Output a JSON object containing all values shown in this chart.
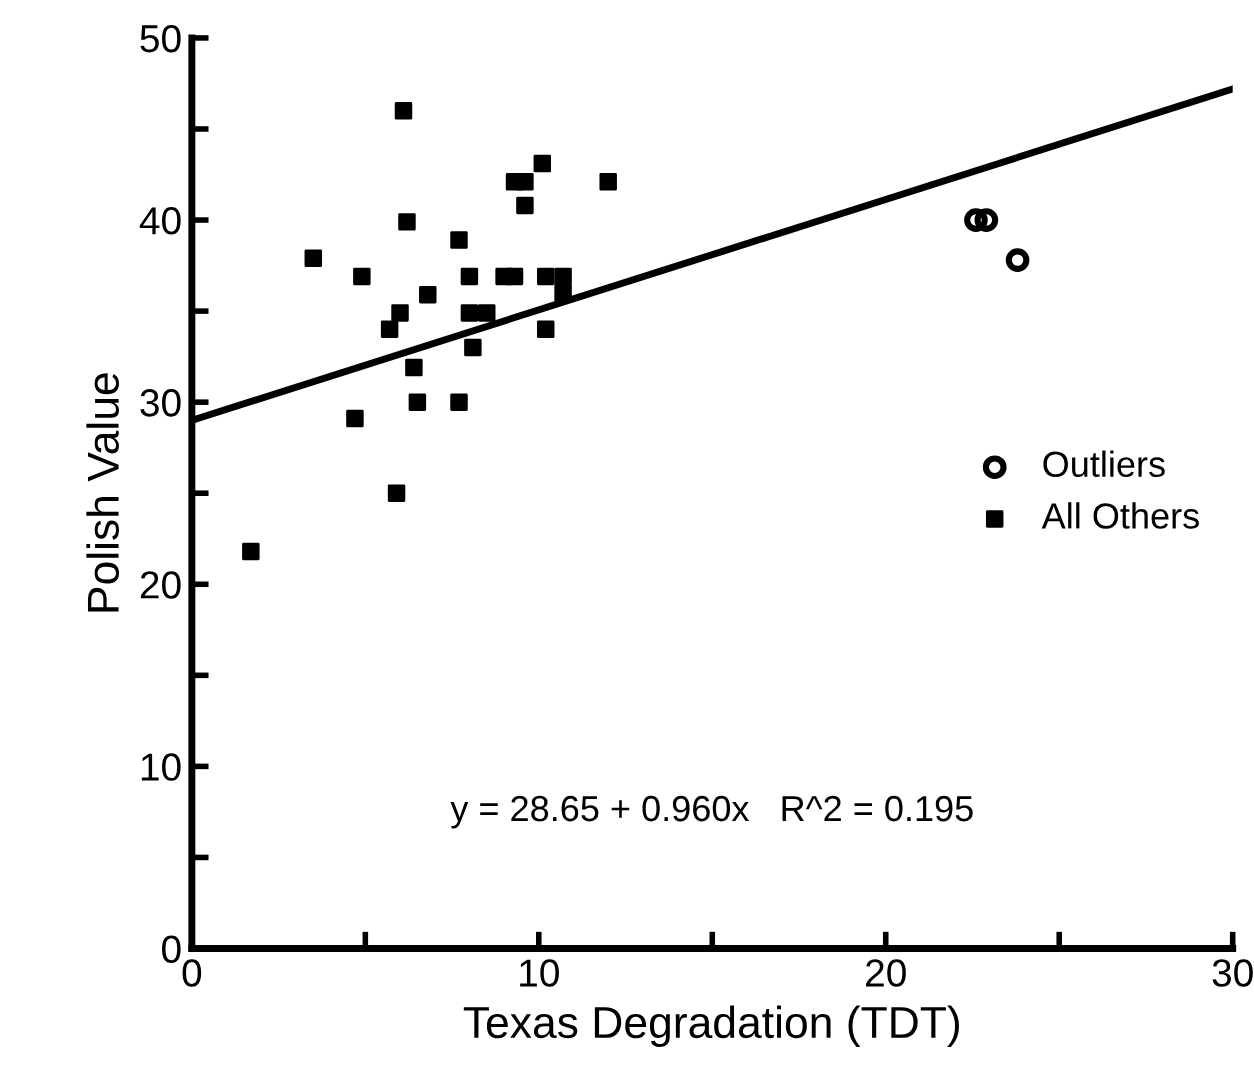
{
  "chart_data": {
    "type": "scatter",
    "xlabel": "Texas Degradation (TDT)",
    "ylabel": "Polish Value",
    "xlim": [
      0,
      30
    ],
    "ylim": [
      0,
      50
    ],
    "xticks": [
      0,
      {
        "value": 5,
        "label": null
      },
      10,
      {
        "value": 15,
        "label": null
      },
      20,
      {
        "value": 25,
        "label": null
      },
      30
    ],
    "yticks": [
      0,
      {
        "value": 5,
        "label": null
      },
      10,
      {
        "value": 15,
        "label": null
      },
      20,
      {
        "value": 25,
        "label": null
      },
      30,
      {
        "value": 35,
        "label": null
      },
      40,
      {
        "value": 45,
        "label": null
      },
      50
    ],
    "grid": false,
    "legend": "right",
    "annotations": [
      "y = 28.65 + 0.960x   R^2 = 0.195"
    ],
    "series": [
      {
        "name": "Outliers",
        "marker": "circle",
        "color": "#000000",
        "x": [
          22.6,
          22.9,
          23.8
        ],
        "values": [
          40.0,
          40.0,
          37.8
        ]
      },
      {
        "name": "All Others",
        "marker": "square",
        "color": "#000000",
        "x": [
          1.7,
          3.5,
          4.7,
          4.9,
          5.7,
          5.9,
          6.0,
          6.1,
          6.2,
          6.4,
          6.5,
          6.8,
          7.7,
          7.7,
          8.0,
          8.0,
          8.1,
          8.5,
          9.0,
          9.3,
          9.3,
          9.6,
          9.6,
          10.1,
          10.2,
          10.2,
          10.7,
          10.7,
          12.0
        ],
        "values": [
          21.8,
          37.9,
          29.1,
          36.9,
          34.0,
          25.0,
          34.9,
          46.0,
          39.9,
          31.9,
          30.0,
          35.9,
          38.9,
          30.0,
          36.9,
          34.9,
          33.0,
          34.9,
          36.9,
          36.9,
          42.1,
          42.1,
          40.8,
          43.1,
          36.9,
          34.0,
          36.9,
          36.0,
          42.1
        ]
      },
      {
        "type": "line",
        "color": "#000000",
        "x": [
          0,
          30
        ],
        "values": [
          29.0,
          47.2
        ]
      }
    ]
  }
}
